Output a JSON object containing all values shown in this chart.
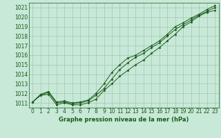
{
  "title": "Graphe pression niveau de la mer (hPa)",
  "bg_color": "#c8e8d8",
  "grid_color": "#a0c8b0",
  "line_color": "#1a5c1a",
  "marker_color": "#1a5c1a",
  "xlim": [
    -0.5,
    23.5
  ],
  "ylim": [
    1010.5,
    1021.5
  ],
  "yticks": [
    1011,
    1012,
    1013,
    1014,
    1015,
    1016,
    1017,
    1018,
    1019,
    1020,
    1021
  ],
  "xticks": [
    0,
    1,
    2,
    3,
    4,
    5,
    6,
    7,
    8,
    9,
    10,
    11,
    12,
    13,
    14,
    15,
    16,
    17,
    18,
    19,
    20,
    21,
    22,
    23
  ],
  "series": [
    [
      1011.1,
      1011.8,
      1011.9,
      1010.8,
      1011.0,
      1010.8,
      1010.8,
      1011.0,
      1011.4,
      1012.3,
      1013.0,
      1013.8,
      1014.4,
      1015.0,
      1015.5,
      1016.2,
      1016.8,
      1017.5,
      1018.2,
      1019.0,
      1019.5,
      1020.1,
      1020.5,
      1020.7
    ],
    [
      1011.1,
      1011.8,
      1012.1,
      1011.0,
      1011.1,
      1010.9,
      1011.0,
      1011.2,
      1011.8,
      1012.5,
      1013.5,
      1014.5,
      1015.2,
      1015.8,
      1016.2,
      1016.8,
      1017.3,
      1018.0,
      1018.7,
      1019.2,
      1019.7,
      1020.2,
      1020.6,
      1021.0
    ],
    [
      1011.1,
      1011.9,
      1012.2,
      1011.1,
      1011.2,
      1011.0,
      1011.1,
      1011.3,
      1012.0,
      1013.0,
      1014.2,
      1015.0,
      1015.7,
      1016.0,
      1016.5,
      1017.0,
      1017.5,
      1018.2,
      1019.0,
      1019.4,
      1019.9,
      1020.3,
      1020.8,
      1021.2
    ]
  ]
}
